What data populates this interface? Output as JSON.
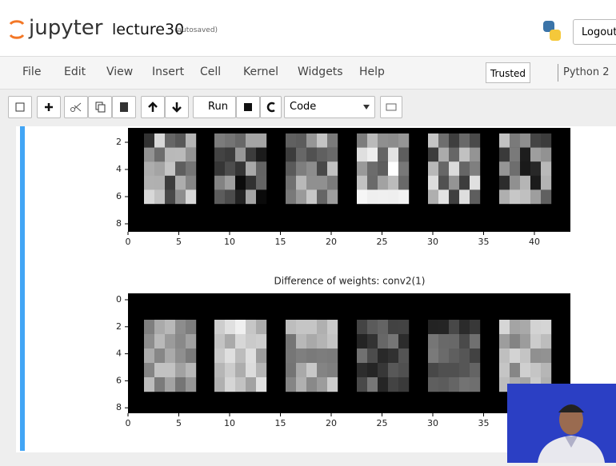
{
  "header": {
    "logo": "jupyter",
    "notebook_name": "lecture30",
    "save_status": "(autosaved)",
    "logout": "Logout"
  },
  "menu": {
    "items": [
      "File",
      "Edit",
      "View",
      "Insert",
      "Cell",
      "Kernel",
      "Widgets",
      "Help"
    ],
    "trusted": "Trusted",
    "kernel": "Python 2"
  },
  "toolbar": {
    "run": "Run",
    "cell_type": "Code"
  },
  "output": {
    "plot1": {
      "yticks": [
        "2",
        "4",
        "6",
        "8"
      ],
      "xticks": [
        "0",
        "5",
        "10",
        "15",
        "20",
        "25",
        "30",
        "35",
        "40"
      ]
    },
    "plot2": {
      "title": "Difference of weights: conv2(1)",
      "yticks": [
        "0",
        "2",
        "4",
        "6",
        "8"
      ],
      "xticks": [
        "0",
        "5",
        "10",
        "15",
        "20",
        "25",
        "30",
        "35"
      ]
    }
  }
}
